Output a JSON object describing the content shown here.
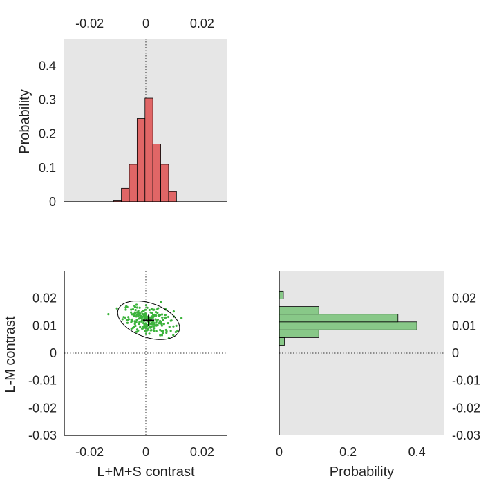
{
  "chart_data": [
    {
      "id": "top_histogram",
      "type": "bar",
      "orientation": "vertical",
      "title": "",
      "xlabel": "",
      "ylabel": "Probability",
      "xlim": [
        -0.029,
        0.029
      ],
      "ylim": [
        0,
        0.48
      ],
      "x_ticks": [
        -0.02,
        0,
        0.02
      ],
      "x_tick_labels": [
        "-0.02",
        "0",
        "0.02"
      ],
      "x_tick_position": "top",
      "y_ticks": [
        0,
        0.1,
        0.2,
        0.3,
        0.4
      ],
      "y_tick_labels": [
        "0",
        "0.1",
        "0.2",
        "0.3",
        "0.4"
      ],
      "bin_edges": [
        -0.0115,
        -0.0087,
        -0.0059,
        -0.0031,
        -0.0003,
        0.0025,
        0.0053,
        0.0081,
        0.0109
      ],
      "values": [
        0.003,
        0.04,
        0.11,
        0.245,
        0.305,
        0.17,
        0.11,
        0.03
      ],
      "zero_line": {
        "axis": "x",
        "value": 0,
        "style": "dotted"
      },
      "colors": {
        "bar": "#e06666",
        "edge": "#000000",
        "background": "#e6e6e6"
      }
    },
    {
      "id": "scatter",
      "type": "scatter",
      "title": "",
      "xlabel": "L+M+S contrast",
      "ylabel": "L-M contrast",
      "xlim": [
        -0.029,
        0.029
      ],
      "ylim": [
        -0.03,
        0.03
      ],
      "x_ticks": [
        -0.02,
        0,
        0.02
      ],
      "x_tick_labels": [
        "-0.02",
        "0",
        "0.02"
      ],
      "y_ticks": [
        -0.03,
        -0.02,
        -0.01,
        0,
        0.01,
        0.02
      ],
      "y_tick_labels": [
        "-0.03",
        "-0.02",
        "-0.01",
        "0",
        "0.01",
        "0.02"
      ],
      "mean": [
        0.001,
        0.012
      ],
      "ellipse": {
        "center": [
          0.001,
          0.012
        ],
        "half_axis_long": 0.0115,
        "half_axis_short": 0.0062,
        "angle_deg": -20
      },
      "spread": {
        "x_sd": 0.0044,
        "y_sd": 0.0026,
        "correlation": -0.3
      },
      "n_points": 230,
      "zero_lines": [
        {
          "axis": "x",
          "value": 0,
          "style": "dotted"
        },
        {
          "axis": "y",
          "value": 0,
          "style": "dotted"
        }
      ],
      "colors": {
        "points": "#3cb33c",
        "ellipse": "#000000",
        "marker": "#000000",
        "background": "#ffffff"
      }
    },
    {
      "id": "right_histogram",
      "type": "bar",
      "orientation": "horizontal",
      "title": "",
      "xlabel": "Probability",
      "ylabel": "",
      "xlim": [
        0,
        0.48
      ],
      "ylim": [
        -0.03,
        0.03
      ],
      "x_ticks": [
        0,
        0.2,
        0.4
      ],
      "x_tick_labels": [
        "0",
        "0.2",
        "0.4"
      ],
      "y_ticks": [
        -0.03,
        -0.02,
        -0.01,
        0,
        0.01,
        0.02
      ],
      "y_tick_labels": [
        "-0.03",
        "-0.02",
        "-0.01",
        "0",
        "0.01",
        "0.02"
      ],
      "y_tick_position": "right",
      "bin_edges": [
        0.0029,
        0.0057,
        0.0085,
        0.0114,
        0.0142,
        0.017,
        0.0198,
        0.0226
      ],
      "values": [
        0.015,
        0.115,
        0.4,
        0.345,
        0.115,
        0.0,
        0.012
      ],
      "zero_line": {
        "axis": "y",
        "value": 0,
        "style": "dotted"
      },
      "colors": {
        "bar": "#88c888",
        "edge": "#000000",
        "background": "#e6e6e6"
      }
    }
  ]
}
